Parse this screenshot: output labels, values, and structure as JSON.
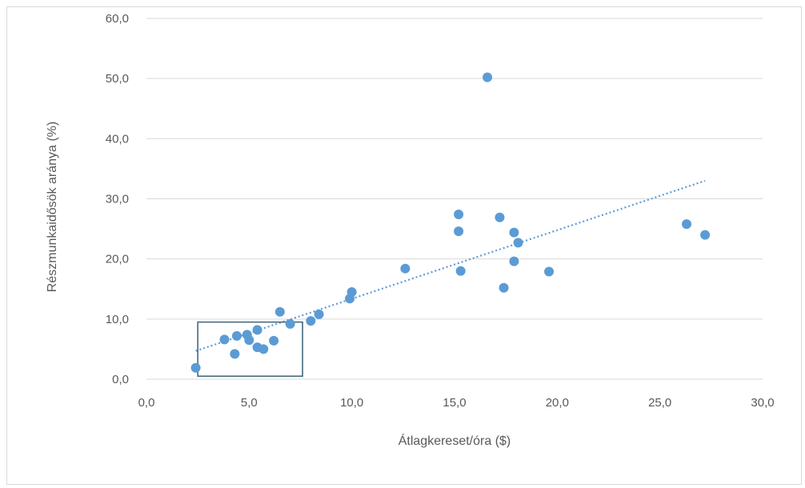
{
  "chart_data": {
    "type": "scatter",
    "title": "",
    "xlabel": "Átlagkereset/óra ($)",
    "ylabel": "Részmunkaidősök aránya (%)",
    "xlim": [
      0,
      30
    ],
    "ylim": [
      0,
      60
    ],
    "x_ticks": [
      "0,0",
      "5,0",
      "10,0",
      "15,0",
      "20,0",
      "25,0",
      "30,0"
    ],
    "y_ticks": [
      "0,0",
      "10,0",
      "20,0",
      "30,0",
      "40,0",
      "50,0",
      "60,0"
    ],
    "grid": "horizontal",
    "legend": "none",
    "colors": {
      "points": "#5b9bd5",
      "trendline": "#5b9bd5",
      "box": "#44697d",
      "grid": "#d9d9d9"
    },
    "points": [
      {
        "x": 2.4,
        "y": 1.9
      },
      {
        "x": 3.8,
        "y": 6.6
      },
      {
        "x": 4.4,
        "y": 7.2
      },
      {
        "x": 4.3,
        "y": 4.2
      },
      {
        "x": 4.9,
        "y": 7.4
      },
      {
        "x": 5.0,
        "y": 6.5
      },
      {
        "x": 5.4,
        "y": 8.2
      },
      {
        "x": 5.4,
        "y": 5.3
      },
      {
        "x": 5.7,
        "y": 5.0
      },
      {
        "x": 6.2,
        "y": 6.4
      },
      {
        "x": 6.5,
        "y": 11.2
      },
      {
        "x": 7.0,
        "y": 9.2
      },
      {
        "x": 8.0,
        "y": 9.7
      },
      {
        "x": 8.4,
        "y": 10.8
      },
      {
        "x": 9.9,
        "y": 13.4
      },
      {
        "x": 10.0,
        "y": 14.5
      },
      {
        "x": 12.6,
        "y": 18.4
      },
      {
        "x": 15.2,
        "y": 27.4
      },
      {
        "x": 15.2,
        "y": 24.6
      },
      {
        "x": 15.3,
        "y": 18.0
      },
      {
        "x": 16.6,
        "y": 50.2
      },
      {
        "x": 17.2,
        "y": 26.9
      },
      {
        "x": 17.4,
        "y": 15.2
      },
      {
        "x": 17.9,
        "y": 24.4
      },
      {
        "x": 17.9,
        "y": 19.6
      },
      {
        "x": 18.1,
        "y": 22.7
      },
      {
        "x": 19.6,
        "y": 17.9
      },
      {
        "x": 26.3,
        "y": 25.8
      },
      {
        "x": 27.2,
        "y": 24.0
      }
    ],
    "trendline": {
      "style": "dotted",
      "from": {
        "x": 2.4,
        "y": 4.7
      },
      "to": {
        "x": 27.2,
        "y": 33.0
      }
    },
    "highlight_box": {
      "x_range": [
        2.5,
        7.6
      ],
      "y_range": [
        0.5,
        9.5
      ]
    }
  }
}
